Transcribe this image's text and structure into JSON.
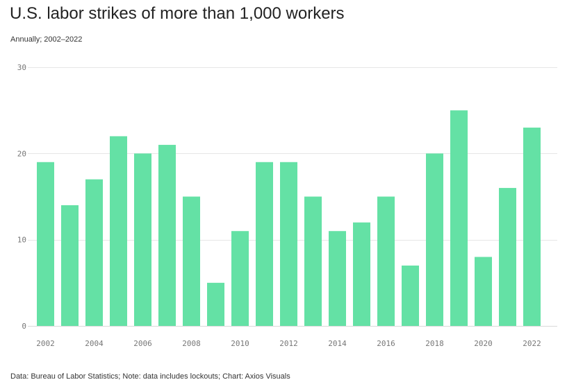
{
  "chart_data": {
    "type": "bar",
    "title": "U.S. labor strikes of more than 1,000 workers",
    "subtitle": "Annually; 2002–2022",
    "source": "Data: Bureau of Labor Statistics; Note: data includes lockouts; Chart: Axios Visuals",
    "categories": [
      "2002",
      "2003",
      "2004",
      "2005",
      "2006",
      "2007",
      "2008",
      "2009",
      "2010",
      "2011",
      "2012",
      "2013",
      "2014",
      "2015",
      "2016",
      "2017",
      "2018",
      "2019",
      "2020",
      "2021",
      "2022"
    ],
    "values": [
      19,
      14,
      17,
      22,
      20,
      21,
      15,
      5,
      11,
      19,
      19,
      15,
      11,
      12,
      15,
      7,
      20,
      25,
      8,
      16,
      23
    ],
    "x_tick_labels": [
      "2002",
      "2004",
      "2006",
      "2008",
      "2010",
      "2012",
      "2014",
      "2016",
      "2018",
      "2020",
      "2022"
    ],
    "y_ticks": [
      0,
      10,
      20,
      30
    ],
    "ylim": [
      0,
      30
    ],
    "xlabel": "",
    "ylabel": "",
    "grid": true,
    "bar_color": "#64e1a5"
  }
}
